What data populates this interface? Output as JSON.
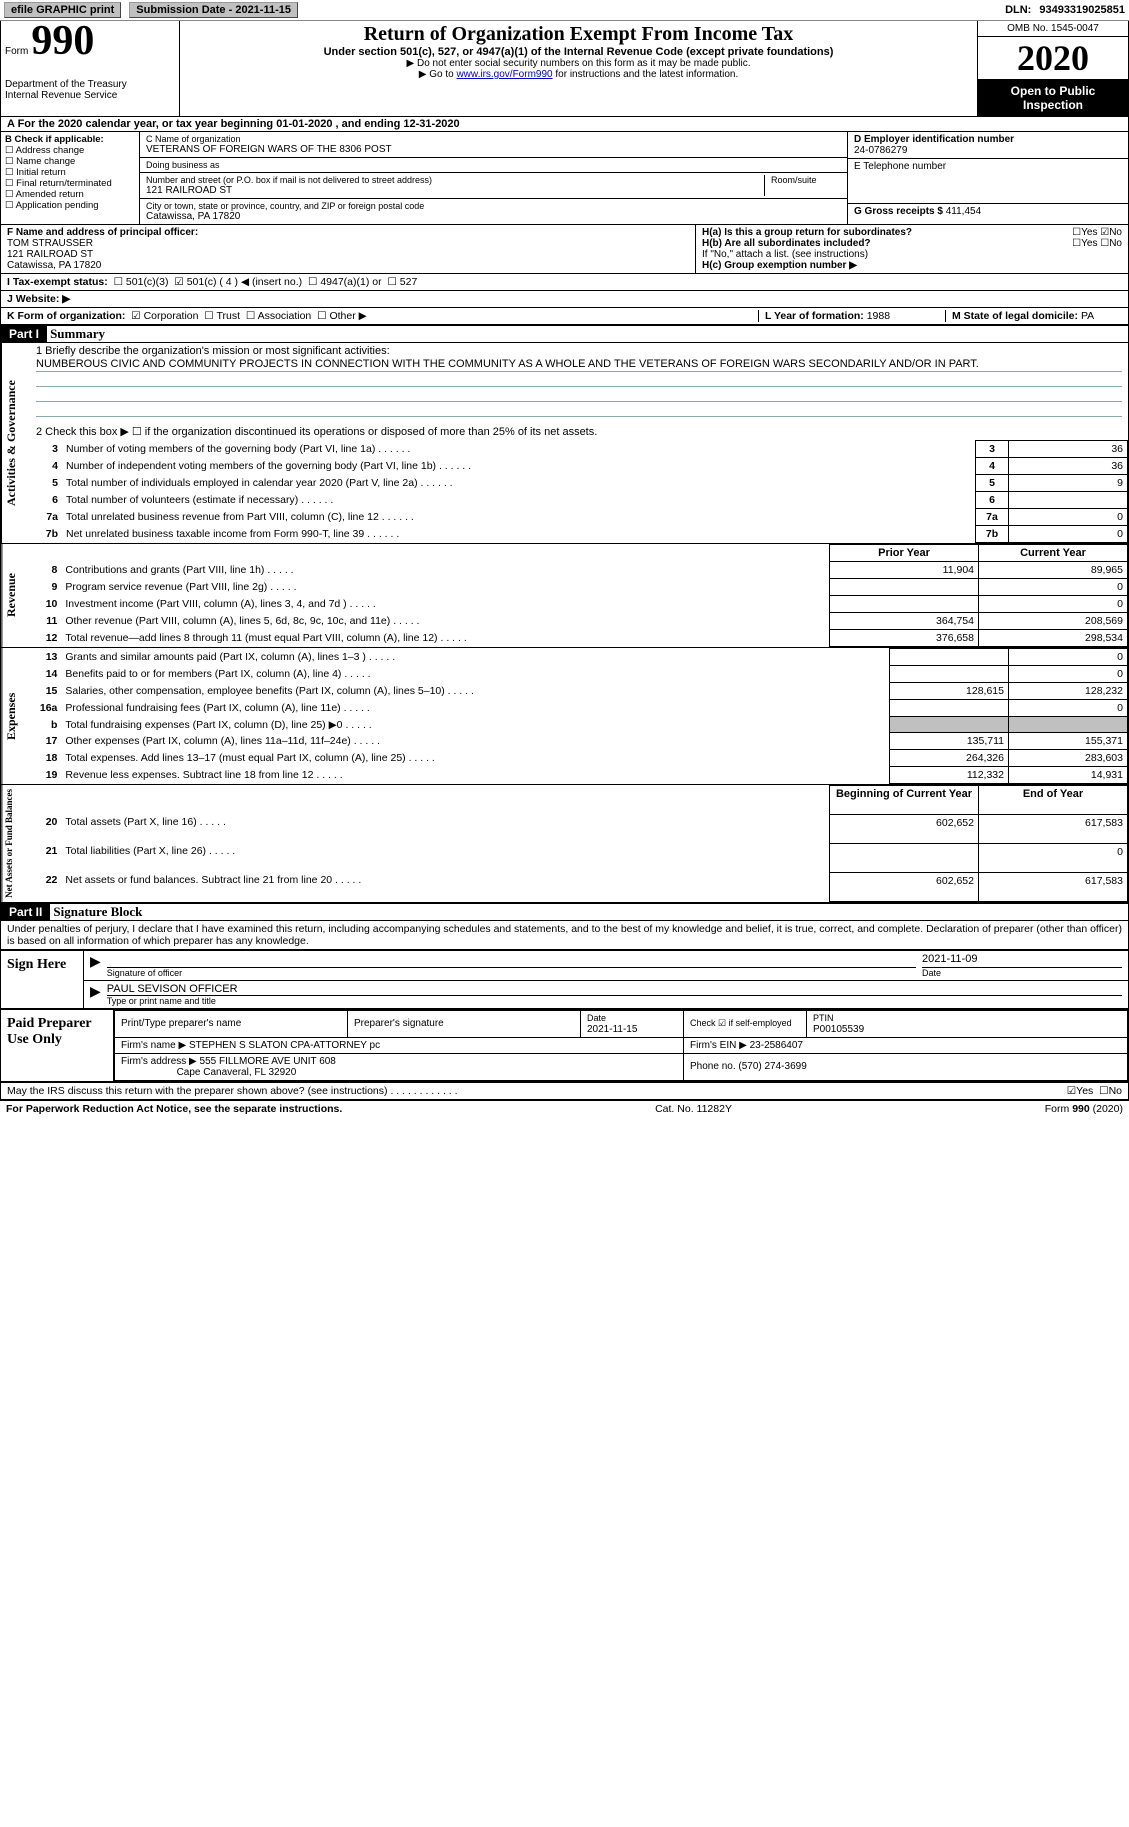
{
  "topbar": {
    "efile": "efile GRAPHIC print",
    "submission_label": "Submission Date - ",
    "submission_date": "2021-11-15",
    "dln_label": "DLN: ",
    "dln": "93493319025851"
  },
  "header": {
    "form_word": "Form",
    "form_no": "990",
    "dept": "Department of the Treasury\nInternal Revenue Service",
    "title": "Return of Organization Exempt From Income Tax",
    "under": "Under section 501(c), 527, or 4947(a)(1) of the Internal Revenue Code (except private foundations)",
    "nosso": "▶ Do not enter social security numbers on this form as it may be made public.",
    "goto_pre": "▶ Go to ",
    "goto_link": "www.irs.gov/Form990",
    "goto_post": " for instructions and the latest information.",
    "omb": "OMB No. 1545-0047",
    "year": "2020",
    "open": "Open to Public Inspection"
  },
  "period": {
    "label": "A For the 2020 calendar year, or tax year beginning ",
    "begin": "01-01-2020",
    "mid": " , and ending ",
    "end": "12-31-2020"
  },
  "box_b": {
    "hdr": "B Check if applicable:",
    "items": [
      "Address change",
      "Name change",
      "Initial return",
      "Final return/terminated",
      "Amended return",
      "Application pending"
    ]
  },
  "box_c": {
    "name_label": "C Name of organization",
    "name": "VETERANS OF FOREIGN WARS OF THE 8306 POST",
    "dba_label": "Doing business as",
    "dba": "",
    "addr_label": "Number and street (or P.O. box if mail is not delivered to street address)",
    "room_label": "Room/suite",
    "addr": "121 RAILROAD ST",
    "city_label": "City or town, state or province, country, and ZIP or foreign postal code",
    "city": "Catawissa, PA  17820"
  },
  "box_d": {
    "ein_label": "D Employer identification number",
    "ein": "24-0786279",
    "phone_label": "E Telephone number",
    "g_label": "G Gross receipts $ ",
    "g_val": "411,454"
  },
  "box_f": {
    "label": "F Name and address of principal officer:",
    "name": "TOM STRAUSSER",
    "addr1": "121 RAILROAD ST",
    "addr2": "Catawissa, PA  17820"
  },
  "box_h": {
    "a": "H(a) Is this a group return for subordinates?",
    "b": "H(b) Are all subordinates included?",
    "note": "If \"No,\" attach a list. (see instructions)",
    "c": "H(c) Group exemption number ▶",
    "yes": "Yes",
    "no": "No"
  },
  "line_i": {
    "label": "I Tax-exempt status:",
    "c3": "501(c)(3)",
    "c": "501(c) ( 4 ) ◀ (insert no.)",
    "a1": "4947(a)(1) or",
    "s527": "527"
  },
  "line_j": {
    "label": "J Website: ▶"
  },
  "line_k": {
    "label": "K Form of organization:",
    "corp": "Corporation",
    "trust": "Trust",
    "assoc": "Association",
    "other": "Other ▶"
  },
  "line_l": {
    "label": "L Year of formation: ",
    "val": "1988"
  },
  "line_m": {
    "label": "M State of legal domicile: ",
    "val": "PA"
  },
  "part1": {
    "hdr": "Part I",
    "title": "Summary",
    "q1": "1  Briefly describe the organization's mission or most significant activities:",
    "mission": "NUMBEROUS CIVIC AND COMMUNITY PROJECTS IN CONNECTION WITH THE COMMUNITY AS A WHOLE AND THE VETERANS OF FOREIGN WARS SECONDARILY AND/OR IN PART.",
    "q2": "2  Check this box ▶ ☐ if the organization discontinued its operations or disposed of more than 25% of its net assets.",
    "side_ag": "Activities & Governance",
    "side_rev": "Revenue",
    "side_exp": "Expenses",
    "side_na": "Net Assets or Fund Balances",
    "rows_ag": [
      {
        "n": "3",
        "t": "Number of voting members of the governing body (Part VI, line 1a)",
        "v": "36"
      },
      {
        "n": "4",
        "t": "Number of independent voting members of the governing body (Part VI, line 1b)",
        "v": "36"
      },
      {
        "n": "5",
        "t": "Total number of individuals employed in calendar year 2020 (Part V, line 2a)",
        "v": "9"
      },
      {
        "n": "6",
        "t": "Total number of volunteers (estimate if necessary)",
        "v": ""
      },
      {
        "n": "7a",
        "t": "Total unrelated business revenue from Part VIII, column (C), line 12",
        "v": "0"
      },
      {
        "n": "7b",
        "t": "Net unrelated business taxable income from Form 990-T, line 39",
        "v": "0"
      }
    ],
    "col_prior": "Prior Year",
    "col_curr": "Current Year",
    "rows_rev": [
      {
        "n": "8",
        "t": "Contributions and grants (Part VIII, line 1h)",
        "p": "11,904",
        "c": "89,965"
      },
      {
        "n": "9",
        "t": "Program service revenue (Part VIII, line 2g)",
        "p": "",
        "c": "0"
      },
      {
        "n": "10",
        "t": "Investment income (Part VIII, column (A), lines 3, 4, and 7d )",
        "p": "",
        "c": "0"
      },
      {
        "n": "11",
        "t": "Other revenue (Part VIII, column (A), lines 5, 6d, 8c, 9c, 10c, and 11e)",
        "p": "364,754",
        "c": "208,569"
      },
      {
        "n": "12",
        "t": "Total revenue—add lines 8 through 11 (must equal Part VIII, column (A), line 12)",
        "p": "376,658",
        "c": "298,534"
      }
    ],
    "rows_exp": [
      {
        "n": "13",
        "t": "Grants and similar amounts paid (Part IX, column (A), lines 1–3 )",
        "p": "",
        "c": "0"
      },
      {
        "n": "14",
        "t": "Benefits paid to or for members (Part IX, column (A), line 4)",
        "p": "",
        "c": "0"
      },
      {
        "n": "15",
        "t": "Salaries, other compensation, employee benefits (Part IX, column (A), lines 5–10)",
        "p": "128,615",
        "c": "128,232"
      },
      {
        "n": "16a",
        "t": "Professional fundraising fees (Part IX, column (A), line 11e)",
        "p": "",
        "c": "0"
      },
      {
        "n": "b",
        "t": "Total fundraising expenses (Part IX, column (D), line 25) ▶0",
        "p": "GRAY",
        "c": "GRAY"
      },
      {
        "n": "17",
        "t": "Other expenses (Part IX, column (A), lines 11a–11d, 11f–24e)",
        "p": "135,711",
        "c": "155,371"
      },
      {
        "n": "18",
        "t": "Total expenses. Add lines 13–17 (must equal Part IX, column (A), line 25)",
        "p": "264,326",
        "c": "283,603"
      },
      {
        "n": "19",
        "t": "Revenue less expenses. Subtract line 18 from line 12",
        "p": "112,332",
        "c": "14,931"
      }
    ],
    "col_boy": "Beginning of Current Year",
    "col_eoy": "End of Year",
    "rows_na": [
      {
        "n": "20",
        "t": "Total assets (Part X, line 16)",
        "p": "602,652",
        "c": "617,583"
      },
      {
        "n": "21",
        "t": "Total liabilities (Part X, line 26)",
        "p": "",
        "c": "0"
      },
      {
        "n": "22",
        "t": "Net assets or fund balances. Subtract line 21 from line 20",
        "p": "602,652",
        "c": "617,583"
      }
    ]
  },
  "part2": {
    "hdr": "Part II",
    "title": "Signature Block",
    "decl": "Under penalties of perjury, I declare that I have examined this return, including accompanying schedules and statements, and to the best of my knowledge and belief, it is true, correct, and complete. Declaration of preparer (other than officer) is based on all information of which preparer has any knowledge.",
    "sign_here": "Sign Here",
    "sig_officer": "Signature of officer",
    "sig_date_label": "Date",
    "sig_date": "2021-11-09",
    "officer_name": "PAUL SEVISON  OFFICER",
    "officer_type": "Type or print name and title",
    "paid": "Paid Preparer Use Only",
    "p_name_lbl": "Print/Type preparer's name",
    "p_sig_lbl": "Preparer's signature",
    "p_date_lbl": "Date",
    "p_date": "2021-11-15",
    "p_self_lbl": "Check ☑ if self-employed",
    "ptin_lbl": "PTIN",
    "ptin": "P00105539",
    "firm_name_lbl": "Firm's name ▶ ",
    "firm_name": "STEPHEN S SLATON CPA-ATTORNEY pc",
    "firm_ein_lbl": "Firm's EIN ▶ ",
    "firm_ein": "23-2586407",
    "firm_addr_lbl": "Firm's address ▶ ",
    "firm_addr": "555 FILLMORE AVE UNIT 608",
    "firm_city": "Cape Canaveral, FL  32920",
    "phone_lbl": "Phone no. ",
    "phone": "(570) 274-3699",
    "discuss": "May the IRS discuss this return with the preparer shown above? (see instructions)",
    "d_yes": "Yes",
    "d_no": "No"
  },
  "footer": {
    "pra": "For Paperwork Reduction Act Notice, see the separate instructions.",
    "cat": "Cat. No. 11282Y",
    "form": "Form 990 (2020)"
  }
}
